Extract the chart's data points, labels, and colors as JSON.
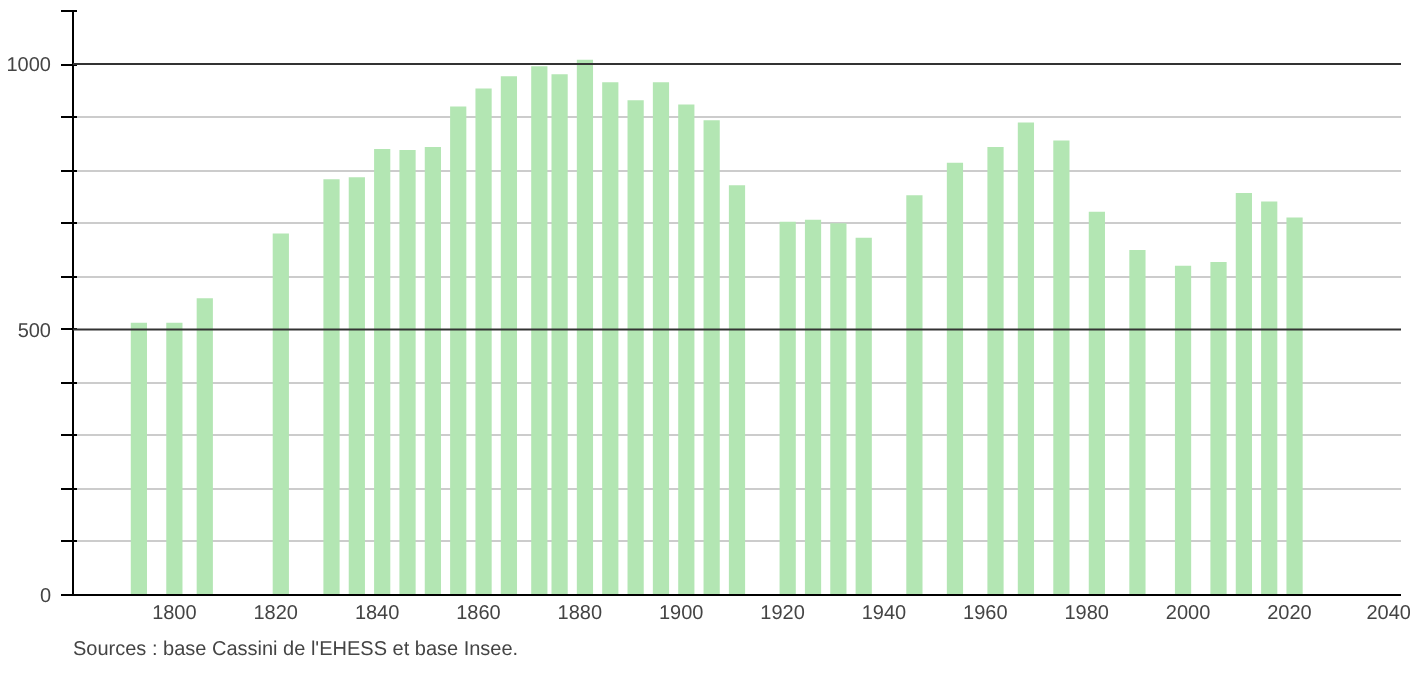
{
  "chart_data": {
    "type": "bar",
    "x": [
      1793,
      1800,
      1806,
      1821,
      1831,
      1836,
      1841,
      1846,
      1851,
      1856,
      1861,
      1866,
      1872,
      1876,
      1881,
      1886,
      1891,
      1896,
      1901,
      1906,
      1911,
      1921,
      1926,
      1931,
      1936,
      1946,
      1954,
      1962,
      1968,
      1975,
      1982,
      1990,
      1999,
      2006,
      2011,
      2016,
      2021
    ],
    "values": [
      513,
      513,
      559,
      681,
      783,
      787,
      840,
      838,
      844,
      920,
      954,
      977,
      996,
      981,
      1008,
      966,
      932,
      966,
      924,
      894,
      772,
      703,
      707,
      700,
      673,
      753,
      814,
      844,
      890,
      856,
      722,
      650,
      620,
      627,
      757,
      741,
      711
    ],
    "color": "#b3e6b3",
    "xlim": [
      1780,
      2042
    ],
    "xticks": [
      1800,
      1820,
      1840,
      1860,
      1880,
      1900,
      1920,
      1940,
      1960,
      1980,
      2000,
      2020,
      2040
    ],
    "ylim": [
      0,
      1100
    ],
    "yticks": [
      0,
      {
        "value": 100,
        "label": null
      },
      {
        "value": 200,
        "label": null
      },
      {
        "value": 300,
        "label": null
      },
      {
        "value": 400,
        "label": null
      },
      500,
      {
        "value": 600,
        "label": null
      },
      {
        "value": 700,
        "label": null
      },
      {
        "value": 800,
        "label": null
      },
      {
        "value": 900,
        "label": null
      },
      1000,
      {
        "value": 1100,
        "label": null
      }
    ],
    "grid": "y",
    "annotations": [
      "Sources : base Cassini de l'EHESS et base Insee."
    ]
  }
}
